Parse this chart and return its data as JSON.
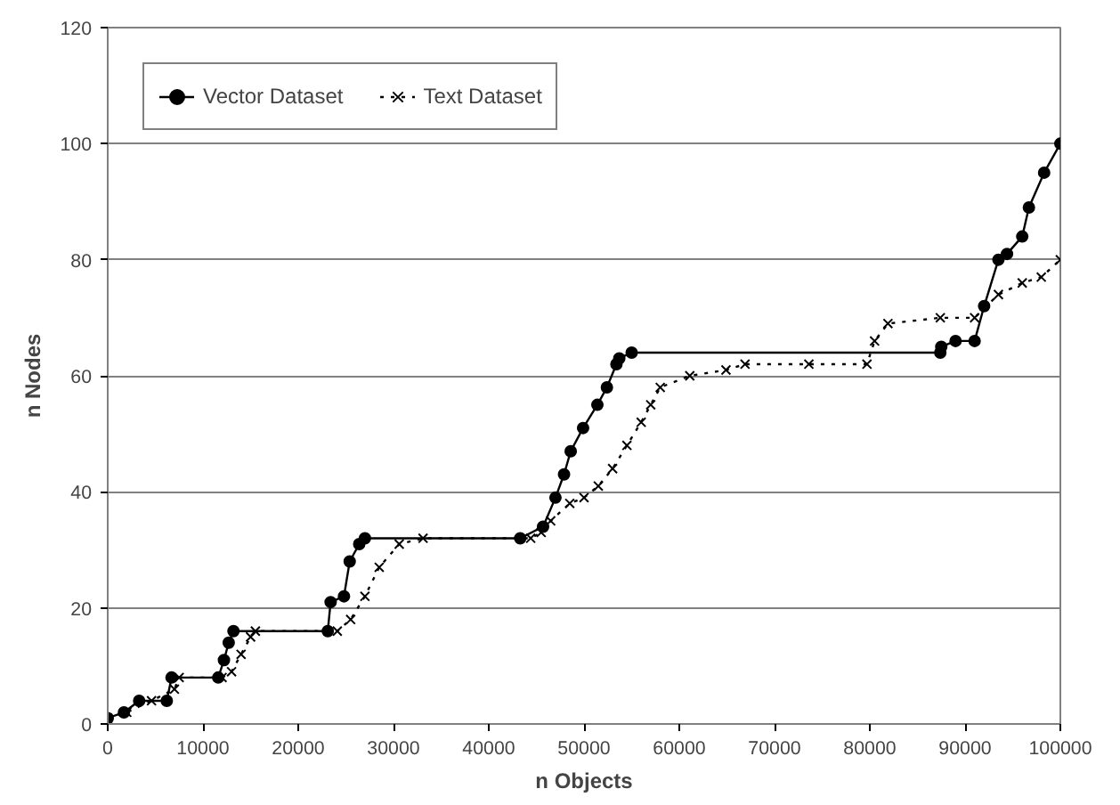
{
  "chart_data": {
    "type": "line",
    "xlabel": "n Objects",
    "ylabel": "n Nodes",
    "xlim": [
      0,
      100000
    ],
    "ylim": [
      0,
      120
    ],
    "xticks": [
      0,
      10000,
      20000,
      30000,
      40000,
      50000,
      60000,
      70000,
      80000,
      90000,
      100000
    ],
    "yticks": [
      0,
      20,
      40,
      60,
      80,
      100,
      120
    ],
    "grid": "y",
    "legend": "top left",
    "series": [
      {
        "name": "Vector Dataset",
        "color": "#000000",
        "marker": "circle",
        "line_style": "solid",
        "x": [
          0,
          1700,
          3300,
          6200,
          6700,
          11600,
          12200,
          12700,
          13200,
          23100,
          23400,
          24800,
          25400,
          26400,
          27000,
          43300,
          45700,
          47000,
          47900,
          48600,
          49900,
          51400,
          52400,
          53400,
          53700,
          55000,
          87400,
          87500,
          89000,
          91000,
          92000,
          93500,
          94400,
          96000,
          96700,
          98300,
          100000
        ],
        "values": [
          1,
          2,
          4,
          4,
          8,
          8,
          11,
          14,
          16,
          16,
          21,
          22,
          28,
          31,
          32,
          32,
          34,
          39,
          43,
          47,
          51,
          55,
          58,
          62,
          63,
          64,
          64,
          65,
          66,
          66,
          72,
          80,
          81,
          84,
          89,
          95,
          100
        ]
      },
      {
        "name": "Text Dataset",
        "color": "#000000",
        "marker": "cross",
        "line_style": "dotted",
        "x": [
          0,
          2000,
          4600,
          7000,
          7500,
          12000,
          13000,
          14000,
          15000,
          15500,
          24100,
          25500,
          27000,
          28500,
          30600,
          33100,
          44400,
          45500,
          46500,
          48500,
          50000,
          51500,
          53000,
          54500,
          56000,
          57000,
          58000,
          61100,
          64900,
          66900,
          73600,
          79700,
          80500,
          81900,
          87400,
          91000,
          93500,
          96000,
          98000,
          100000
        ],
        "values": [
          1,
          2,
          4,
          6,
          8,
          8,
          9,
          12,
          15,
          16,
          16,
          18,
          22,
          27,
          31,
          32,
          32,
          33,
          35,
          38,
          39,
          41,
          44,
          48,
          52,
          55,
          58,
          60,
          61,
          62,
          62,
          62,
          66,
          69,
          70,
          70,
          74,
          76,
          77,
          80
        ]
      }
    ]
  }
}
